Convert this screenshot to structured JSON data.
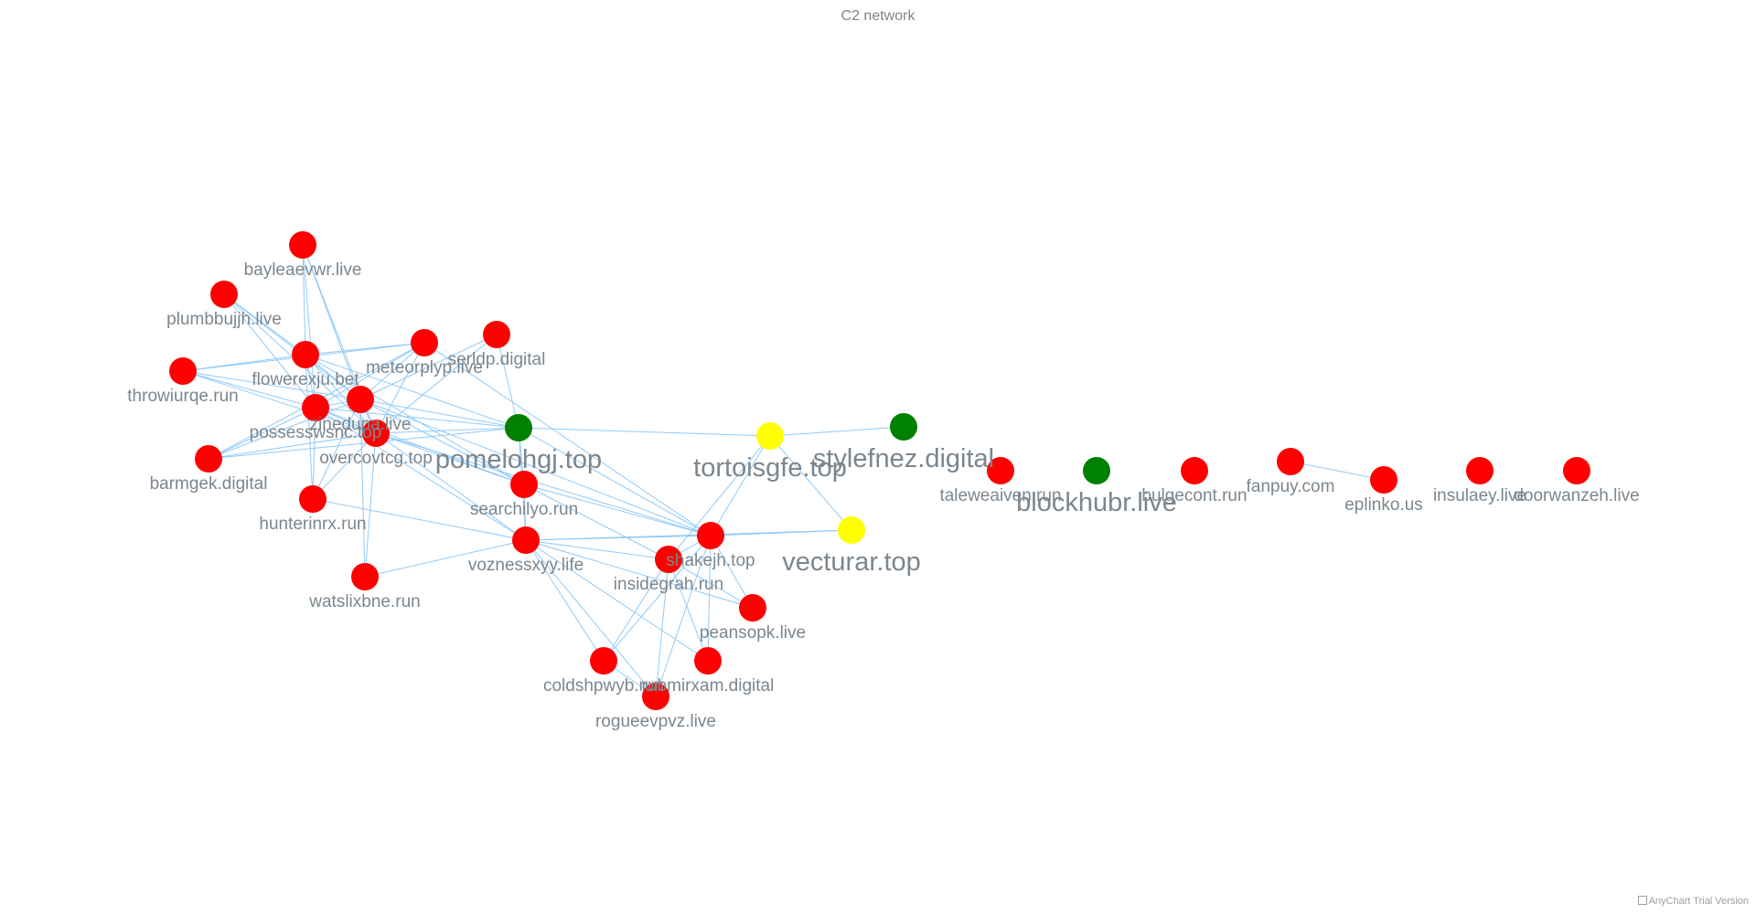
{
  "title": "C2 network",
  "credits": "AnyChart Trial Version",
  "colors": {
    "red": "#ff0000",
    "green": "#008000",
    "yellow": "#ffff00",
    "edge": "#90caf9"
  },
  "nodes": [
    {
      "id": "bayleaevwr.live",
      "color": "red",
      "size": "small"
    },
    {
      "id": "plumbbujjh.live",
      "color": "red",
      "size": "small"
    },
    {
      "id": "flowerexju.bet",
      "color": "red",
      "size": "small"
    },
    {
      "id": "meteorplyp.live",
      "color": "red",
      "size": "small"
    },
    {
      "id": "serldp.digital",
      "color": "red",
      "size": "small"
    },
    {
      "id": "throwiurqe.run",
      "color": "red",
      "size": "small"
    },
    {
      "id": "possesswsnc.top",
      "color": "red",
      "size": "small"
    },
    {
      "id": "zinedupa.live",
      "color": "red",
      "size": "small"
    },
    {
      "id": "overcovtcg.top",
      "color": "red",
      "size": "small"
    },
    {
      "id": "pomelohgj.top",
      "color": "green",
      "size": "large"
    },
    {
      "id": "barmgek.digital",
      "color": "red",
      "size": "small"
    },
    {
      "id": "hunterinrx.run",
      "color": "red",
      "size": "small"
    },
    {
      "id": "searchilyo.run",
      "color": "red",
      "size": "small"
    },
    {
      "id": "tortoisgfe.top",
      "color": "yellow",
      "size": "large"
    },
    {
      "id": "stylefnez.digital",
      "color": "green",
      "size": "large"
    },
    {
      "id": "voznessxyy.life",
      "color": "red",
      "size": "small"
    },
    {
      "id": "shakejh.top",
      "color": "red",
      "size": "small"
    },
    {
      "id": "insidegrah.run",
      "color": "red",
      "size": "small"
    },
    {
      "id": "vecturar.top",
      "color": "yellow",
      "size": "large"
    },
    {
      "id": "watslixbne.run",
      "color": "red",
      "size": "small"
    },
    {
      "id": "peansopk.live",
      "color": "red",
      "size": "small"
    },
    {
      "id": "coldshpwyb.run",
      "color": "red",
      "size": "small"
    },
    {
      "id": "rubmirxam.digital",
      "color": "red",
      "size": "small"
    },
    {
      "id": "rogueevpvz.live",
      "color": "red",
      "size": "small"
    },
    {
      "id": "taleweaiven.run",
      "color": "red",
      "size": "small"
    },
    {
      "id": "blockhubr.live",
      "color": "green",
      "size": "large"
    },
    {
      "id": "bulgecont.run",
      "color": "red",
      "size": "small"
    },
    {
      "id": "fanpuy.com",
      "color": "red",
      "size": "small"
    },
    {
      "id": "eplinko.us",
      "color": "red",
      "size": "small"
    },
    {
      "id": "insulaey.live",
      "color": "red",
      "size": "small"
    },
    {
      "id": "doorwanzeh.live",
      "color": "red",
      "size": "small"
    }
  ],
  "edges": [
    [
      "bayleaevwr.live",
      "flowerexju.bet"
    ],
    [
      "bayleaevwr.live",
      "zinedupa.live"
    ],
    [
      "bayleaevwr.live",
      "overcovtcg.top"
    ],
    [
      "bayleaevwr.live",
      "possesswsnc.top"
    ],
    [
      "plumbbujjh.live",
      "flowerexju.bet"
    ],
    [
      "plumbbujjh.live",
      "zinedupa.live"
    ],
    [
      "plumbbujjh.live",
      "possesswsnc.top"
    ],
    [
      "plumbbujjh.live",
      "overcovtcg.top"
    ],
    [
      "throwiurqe.run",
      "flowerexju.bet"
    ],
    [
      "throwiurqe.run",
      "zinedupa.live"
    ],
    [
      "throwiurqe.run",
      "possesswsnc.top"
    ],
    [
      "throwiurqe.run",
      "meteorplyp.live"
    ],
    [
      "throwiurqe.run",
      "overcovtcg.top"
    ],
    [
      "flowerexju.bet",
      "meteorplyp.live"
    ],
    [
      "flowerexju.bet",
      "zinedupa.live"
    ],
    [
      "flowerexju.bet",
      "possesswsnc.top"
    ],
    [
      "flowerexju.bet",
      "overcovtcg.top"
    ],
    [
      "flowerexju.bet",
      "pomelohgj.top"
    ],
    [
      "flowerexju.bet",
      "hunterinrx.run"
    ],
    [
      "flowerexju.bet",
      "searchilyo.run"
    ],
    [
      "meteorplyp.live",
      "zinedupa.live"
    ],
    [
      "meteorplyp.live",
      "possesswsnc.top"
    ],
    [
      "meteorplyp.live",
      "overcovtcg.top"
    ],
    [
      "meteorplyp.live",
      "barmgek.digital"
    ],
    [
      "meteorplyp.live",
      "shakejh.top"
    ],
    [
      "serldp.digital",
      "zinedupa.live"
    ],
    [
      "serldp.digital",
      "overcovtcg.top"
    ],
    [
      "serldp.digital",
      "pomelohgj.top"
    ],
    [
      "possesswsnc.top",
      "zinedupa.live"
    ],
    [
      "possesswsnc.top",
      "overcovtcg.top"
    ],
    [
      "possesswsnc.top",
      "pomelohgj.top"
    ],
    [
      "possesswsnc.top",
      "hunterinrx.run"
    ],
    [
      "possesswsnc.top",
      "barmgek.digital"
    ],
    [
      "possesswsnc.top",
      "searchilyo.run"
    ],
    [
      "possesswsnc.top",
      "voznessxyy.life"
    ],
    [
      "zinedupa.live",
      "overcovtcg.top"
    ],
    [
      "zinedupa.live",
      "pomelohgj.top"
    ],
    [
      "zinedupa.live",
      "barmgek.digital"
    ],
    [
      "zinedupa.live",
      "hunterinrx.run"
    ],
    [
      "zinedupa.live",
      "watslixbne.run"
    ],
    [
      "zinedupa.live",
      "searchilyo.run"
    ],
    [
      "zinedupa.live",
      "shakejh.top"
    ],
    [
      "overcovtcg.top",
      "pomelohgj.top"
    ],
    [
      "overcovtcg.top",
      "barmgek.digital"
    ],
    [
      "overcovtcg.top",
      "hunterinrx.run"
    ],
    [
      "overcovtcg.top",
      "watslixbne.run"
    ],
    [
      "overcovtcg.top",
      "searchilyo.run"
    ],
    [
      "overcovtcg.top",
      "voznessxyy.life"
    ],
    [
      "overcovtcg.top",
      "shakejh.top"
    ],
    [
      "barmgek.digital",
      "pomelohgj.top"
    ],
    [
      "hunterinrx.run",
      "voznessxyy.life"
    ],
    [
      "pomelohgj.top",
      "tortoisgfe.top"
    ],
    [
      "pomelohgj.top",
      "searchilyo.run"
    ],
    [
      "pomelohgj.top",
      "voznessxyy.life"
    ],
    [
      "pomelohgj.top",
      "shakejh.top"
    ],
    [
      "tortoisgfe.top",
      "stylefnez.digital"
    ],
    [
      "tortoisgfe.top",
      "shakejh.top"
    ],
    [
      "tortoisgfe.top",
      "vecturar.top"
    ],
    [
      "tortoisgfe.top",
      "insidegrah.run"
    ],
    [
      "searchilyo.run",
      "shakejh.top"
    ],
    [
      "searchilyo.run",
      "insidegrah.run"
    ],
    [
      "searchilyo.run",
      "voznessxyy.life"
    ],
    [
      "voznessxyy.life",
      "shakejh.top"
    ],
    [
      "voznessxyy.life",
      "insidegrah.run"
    ],
    [
      "voznessxyy.life",
      "vecturar.top"
    ],
    [
      "voznessxyy.life",
      "watslixbne.run"
    ],
    [
      "voznessxyy.life",
      "coldshpwyb.run"
    ],
    [
      "voznessxyy.life",
      "rubmirxam.digital"
    ],
    [
      "voznessxyy.life",
      "rogueevpvz.live"
    ],
    [
      "voznessxyy.life",
      "peansopk.live"
    ],
    [
      "shakejh.top",
      "vecturar.top"
    ],
    [
      "shakejh.top",
      "insidegrah.run"
    ],
    [
      "shakejh.top",
      "peansopk.live"
    ],
    [
      "shakejh.top",
      "coldshpwyb.run"
    ],
    [
      "shakejh.top",
      "rubmirxam.digital"
    ],
    [
      "shakejh.top",
      "rogueevpvz.live"
    ],
    [
      "insidegrah.run",
      "peansopk.live"
    ],
    [
      "insidegrah.run",
      "coldshpwyb.run"
    ],
    [
      "insidegrah.run",
      "rubmirxam.digital"
    ],
    [
      "insidegrah.run",
      "rogueevpvz.live"
    ],
    [
      "coldshpwyb.run",
      "rogueevpvz.live"
    ],
    [
      "fanpuy.com",
      "eplinko.us"
    ]
  ]
}
